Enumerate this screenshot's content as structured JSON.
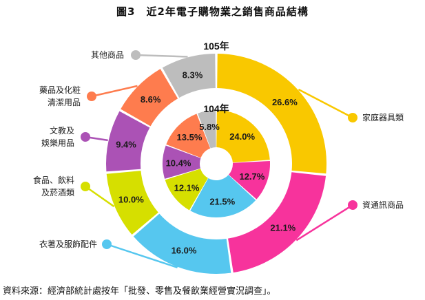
{
  "title": "圖3　近2年電子購物業之銷售商品結構",
  "source": "資料來源：經濟部統計處按年「批發、零售及餐飲業經營實況調查」。",
  "colors": [
    "#f9c800",
    "#f7339c",
    "#56c7ef",
    "#d6df00",
    "#ab52b5",
    "#fe7c4e",
    "#bdbdbd"
  ],
  "chart_data": {
    "type": "pie",
    "title": "圖3　近2年電子購物業之銷售商品結構",
    "categories": [
      "家庭器具類",
      "資通訊商品",
      "衣著及服飾配件",
      "食品、飲料及菸酒類",
      "文教及娛樂用品",
      "藥品及化粧清潔用品",
      "其他商品"
    ],
    "category_lines": [
      [
        "家庭器具類"
      ],
      [
        "資通訊商品"
      ],
      [
        "衣著及服飾配件"
      ],
      [
        "食品、飲料",
        "及菸酒類"
      ],
      [
        "文教及",
        "娛樂用品"
      ],
      [
        "藥品及化粧",
        "清潔用品"
      ],
      [
        "其他商品"
      ]
    ],
    "series": [
      {
        "name": "105年",
        "values": [
          26.6,
          21.1,
          16.0,
          10.0,
          9.4,
          8.6,
          8.3
        ]
      },
      {
        "name": "104年",
        "values": [
          24.0,
          12.7,
          21.5,
          12.1,
          10.4,
          13.5,
          5.8
        ]
      }
    ],
    "unit": "%"
  }
}
